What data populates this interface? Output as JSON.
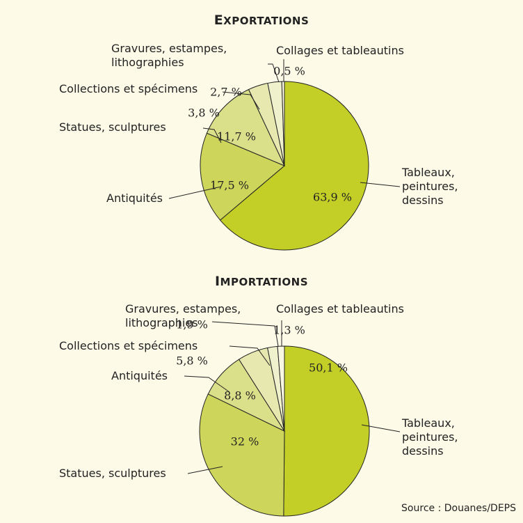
{
  "chart_data": [
    {
      "type": "pie",
      "title": "EXPORTATIONS",
      "categories": [
        "Tableaux, peintures, dessins",
        "Antiquités",
        "Statues, sculptures",
        "Collections et spécimens",
        "Gravures, estampes, lithographies",
        "Collages et tableautins"
      ],
      "values": [
        63.9,
        17.5,
        11.7,
        3.8,
        2.7,
        0.5
      ],
      "value_labels": [
        "63,9 %",
        "17,5 %",
        "11,7 %",
        "3,8 %",
        "2,7 %",
        "0,5 %"
      ],
      "colors": [
        "#c3cf26",
        "#cdd55a",
        "#dadf8a",
        "#e6e8b0",
        "#eff0cc",
        "#f7f7e2"
      ]
    },
    {
      "type": "pie",
      "title": "IMPORTATIONS",
      "categories": [
        "Tableaux, peintures, dessins",
        "Statues, sculptures",
        "Antiquités",
        "Collections et spécimens",
        "Gravures, estampes, lithographies",
        "Collages et tableautins"
      ],
      "values": [
        50.1,
        32,
        8.8,
        5.8,
        1.9,
        1.3
      ],
      "value_labels": [
        "50,1 %",
        "32 %",
        "8,8 %",
        "5,8 %",
        "1,9 %",
        "1,3 %"
      ],
      "colors": [
        "#c3cf26",
        "#cdd55a",
        "#dadf8a",
        "#e6e8b0",
        "#eff0cc",
        "#f7f7e2"
      ],
      "source": "Source : Douanes/DEPS"
    }
  ]
}
